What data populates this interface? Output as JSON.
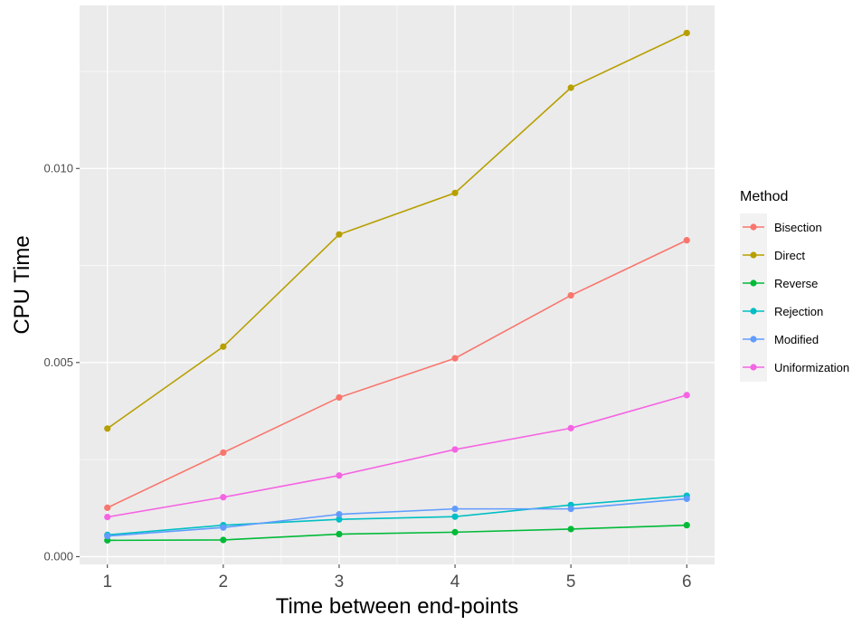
{
  "chart_data": {
    "type": "line",
    "xlabel": "Time between end-points",
    "ylabel": "CPU Time",
    "x": [
      1,
      2,
      3,
      4,
      5,
      6
    ],
    "xlim": [
      0.76,
      6.24
    ],
    "ylim": [
      -0.0002,
      0.0142
    ],
    "x_ticks": [
      "1",
      "2",
      "3",
      "4",
      "5",
      "6"
    ],
    "y_ticks": [
      {
        "value": 0.0,
        "label": "0.000"
      },
      {
        "value": 0.005,
        "label": "0.005"
      },
      {
        "value": 0.01,
        "label": "0.010"
      }
    ],
    "grid": true,
    "legend": {
      "title": "Method",
      "position": "right"
    },
    "series": [
      {
        "name": "Bisection",
        "color": "#F8766D",
        "values": [
          0.00126,
          0.00268,
          0.0041,
          0.00511,
          0.00673,
          0.00815
        ]
      },
      {
        "name": "Direct",
        "color": "#B79F00",
        "values": [
          0.0033,
          0.00541,
          0.0083,
          0.00937,
          0.01208,
          0.01349
        ]
      },
      {
        "name": "Reverse",
        "color": "#00BA38",
        "values": [
          0.00042,
          0.00043,
          0.00058,
          0.00063,
          0.00071,
          0.00081
        ]
      },
      {
        "name": "Rejection",
        "color": "#00BFC4",
        "values": [
          0.00056,
          0.00081,
          0.00096,
          0.00103,
          0.00133,
          0.00157
        ]
      },
      {
        "name": "Modified",
        "color": "#619CFF",
        "values": [
          0.00053,
          0.00075,
          0.00109,
          0.00123,
          0.00123,
          0.00149
        ]
      },
      {
        "name": "Uniformization",
        "color": "#F564E3",
        "values": [
          0.00102,
          0.00153,
          0.00209,
          0.00276,
          0.00331,
          0.00416
        ]
      }
    ]
  }
}
